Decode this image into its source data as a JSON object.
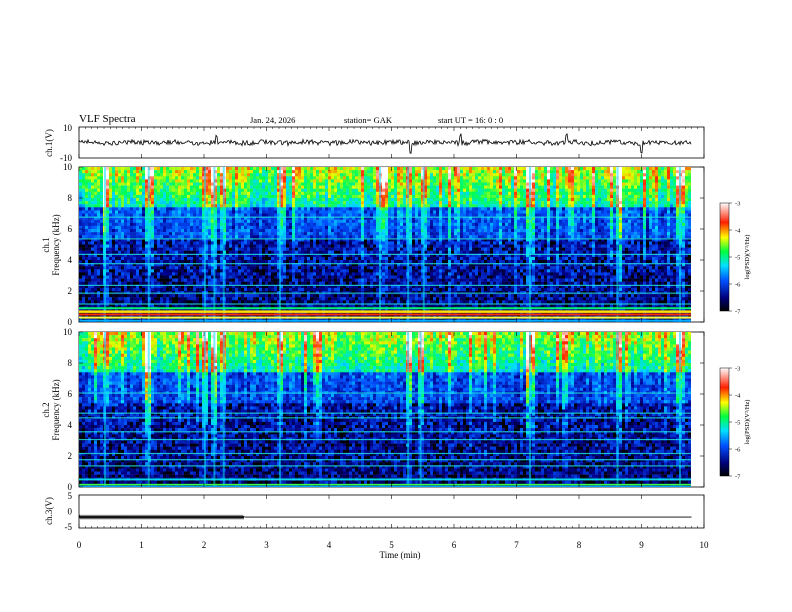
{
  "header": {
    "title": "VLF  Spectra",
    "date": "Jan.  24,  2026",
    "station": "station= GAK",
    "start": "start  UT  =   16: 0   : 0"
  },
  "chart_data": [
    {
      "type": "line",
      "name": "ch1-waveform",
      "ylabel": "ch.1(V)",
      "ylim": [
        -10,
        10
      ],
      "yticks": [
        "10",
        "-10"
      ],
      "xlim": [
        0,
        10
      ],
      "xticks": [
        "0",
        "1",
        "2",
        "3",
        "4",
        "5",
        "6",
        "7",
        "8",
        "9",
        "10"
      ],
      "xlabel": "Time  (min)",
      "series": [
        {
          "name": "ch.1",
          "baseline": 0,
          "noise": 2,
          "spikes": [
            [
              2.2,
              4
            ],
            [
              5.3,
              -6
            ],
            [
              6.1,
              5
            ],
            [
              7.8,
              6
            ],
            [
              9.0,
              -5
            ]
          ]
        }
      ]
    },
    {
      "type": "heatmap",
      "name": "ch1-spectrogram",
      "ylabel": "ch.1\nFrequency  (kHz)",
      "ylabel_line1": "ch.1",
      "ylabel_line2": "Frequency  (kHz)",
      "xlim": [
        0,
        9.8
      ],
      "ylim": [
        0,
        10
      ],
      "yticks": [
        "0",
        "2",
        "4",
        "6",
        "8",
        "10"
      ],
      "colorbar": {
        "label": "log(PSD)(V²/Hz)",
        "range": [
          -7,
          -3
        ],
        "ticks": [
          "-3",
          "-4",
          "-5",
          "-6",
          "-7"
        ]
      },
      "emission_lines_khz": [
        0.3,
        0.55,
        0.9,
        1.2,
        1.9,
        2.4,
        3.8,
        4.4,
        5.4,
        6.8
      ],
      "bursts_min": [
        0.4,
        1.1,
        2.0,
        2.15,
        2.3,
        3.2,
        4.8,
        5.25,
        5.5,
        7.2,
        8.6,
        9.6
      ]
    },
    {
      "type": "heatmap",
      "name": "ch2-spectrogram",
      "ylabel_line1": "ch.2",
      "ylabel_line2": "Frequency  (kHz)",
      "xlim": [
        0,
        9.8
      ],
      "ylim": [
        0,
        10
      ],
      "yticks": [
        "0",
        "2",
        "4",
        "6",
        "8",
        "10"
      ],
      "colorbar": {
        "label": "log(PSD)(V²/Hz)",
        "range": [
          -7,
          -3
        ],
        "ticks": [
          "-3",
          "-4",
          "-5",
          "-6",
          "-7"
        ]
      },
      "emission_lines_khz": [
        0.2,
        0.5,
        1.4,
        1.8,
        2.2,
        3.1,
        3.6,
        4.5,
        4.8,
        6.1
      ],
      "bursts_min": [
        0.4,
        1.1,
        2.0,
        2.15,
        2.3,
        3.2,
        5.25,
        5.45,
        7.2,
        8.6,
        9.6
      ]
    },
    {
      "type": "line",
      "name": "ch3-waveform",
      "ylabel": "ch.3(V)",
      "ylim": [
        -5,
        5
      ],
      "yticks": [
        "5",
        "0",
        "-5"
      ],
      "series": [
        {
          "name": "ch.3",
          "level": -1.8,
          "noisy_until_min": 2.65,
          "end_min": 9.8
        }
      ]
    }
  ],
  "colors": {
    "axis": "#000000",
    "trace": "#000000"
  }
}
